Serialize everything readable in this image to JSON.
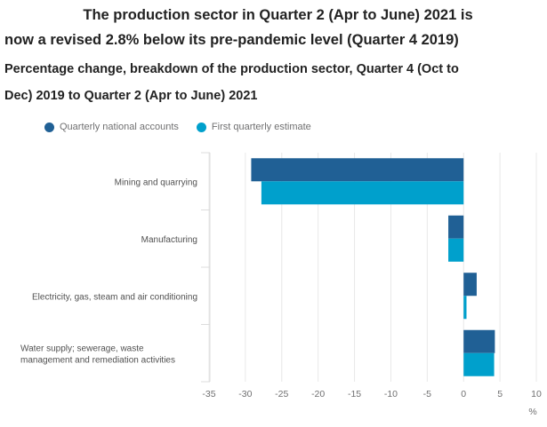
{
  "header": {
    "title_line1": "The production sector in Quarter 2 (Apr to June) 2021 is",
    "title_line2": "now a revised 2.8% below its pre-pandemic level (Quarter 4 2019)",
    "subtitle_line1": "Percentage change, breakdown of the production sector, Quarter 4 (Oct to",
    "subtitle_line2": "Dec) 2019 to Quarter 2 (Apr to June) 2021"
  },
  "chart_data": {
    "type": "bar",
    "orientation": "horizontal",
    "title": "The production sector in Quarter 2 (Apr to June) 2021 is now a revised 2.8% below its pre-pandemic level (Quarter 4 2019)",
    "subtitle": "Percentage change, breakdown of the production sector, Quarter 4 (Oct to Dec) 2019 to Quarter 2 (Apr to June) 2021",
    "categories": [
      [
        "Mining and quarrying"
      ],
      [
        "Manufacturing"
      ],
      [
        "Electricity, gas, steam and air conditioning"
      ],
      [
        "Water supply; sewerage, waste",
        "management and remediation activities"
      ]
    ],
    "series": [
      {
        "name": "Quarterly national accounts",
        "color": "#206095",
        "values": [
          -29.2,
          -2.1,
          1.8,
          4.3
        ]
      },
      {
        "name": "First quarterly estimate",
        "color": "#00A0CC",
        "values": [
          -27.8,
          -2.1,
          0.4,
          4.2
        ]
      }
    ],
    "xlabel": "%",
    "ylabel": "",
    "xlim": [
      -35,
      10
    ],
    "xticks": [
      -35,
      -30,
      -25,
      -20,
      -15,
      -10,
      -5,
      0,
      5,
      10
    ],
    "grid": true,
    "legend_position": "top-left"
  }
}
